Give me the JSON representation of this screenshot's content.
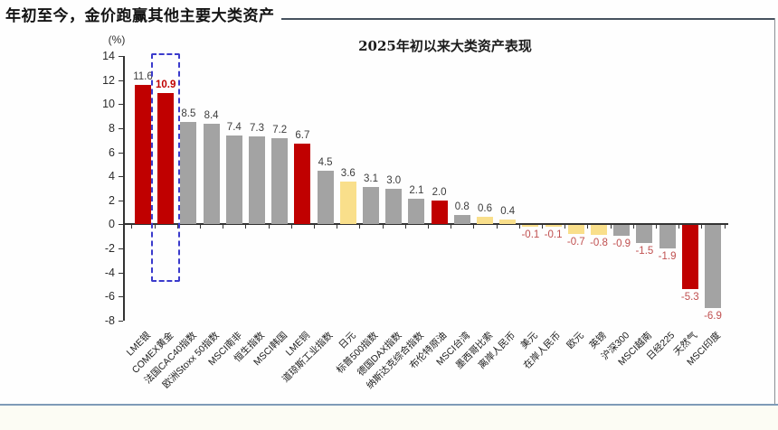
{
  "page": {
    "header_title": "年初至今，金价跑赢其他主要大类资产"
  },
  "chart_data": {
    "type": "bar",
    "title": "2025年初以来大类资产表现",
    "ylabel": "(%)",
    "xlabel": "",
    "ylim": [
      -8,
      14
    ],
    "ytick_step": 2,
    "grid": false,
    "legend": "none",
    "categories": [
      "LME银",
      "COMEX黄金",
      "法国CAC40指数",
      "欧洲Stoxx 50指数",
      "MSCI南非",
      "恒生指数",
      "MSCI韩国",
      "LME铜",
      "道琼斯工业指数",
      "日元",
      "标普500指数",
      "德国DAX指数",
      "纳斯达克综合指数",
      "布伦特原油",
      "MSCI台湾",
      "墨西哥比索",
      "离岸人民币",
      "美元",
      "在岸人民币",
      "欧元",
      "英镑",
      "沪深300",
      "MSCI越南",
      "日经225",
      "天然气",
      "MSCI印度"
    ],
    "values": [
      11.6,
      10.9,
      8.5,
      8.4,
      7.4,
      7.3,
      7.2,
      6.7,
      4.5,
      3.6,
      3.1,
      3.0,
      2.1,
      2.0,
      0.8,
      0.6,
      0.4,
      -0.1,
      -0.1,
      -0.7,
      -0.8,
      -0.9,
      -1.5,
      -1.9,
      -5.3,
      -6.9
    ],
    "bar_color_keys": [
      "red",
      "red",
      "gray",
      "gray",
      "gray",
      "gray",
      "gray",
      "red",
      "gray",
      "yellow",
      "gray",
      "gray",
      "gray",
      "red",
      "gray",
      "yellow",
      "yellow",
      "yellow",
      "yellow",
      "yellow",
      "yellow",
      "gray",
      "gray",
      "gray",
      "red",
      "gray"
    ],
    "colors": {
      "red": "#c00000",
      "gray": "#a3a3a3",
      "yellow": "#f9df8b"
    },
    "value_label_colors": {
      "positive": "#3c3c3c",
      "negative": "#c05050",
      "highlight": "#c00000"
    },
    "highlight": {
      "index": 1,
      "box_color": "#3b3bcc"
    }
  }
}
